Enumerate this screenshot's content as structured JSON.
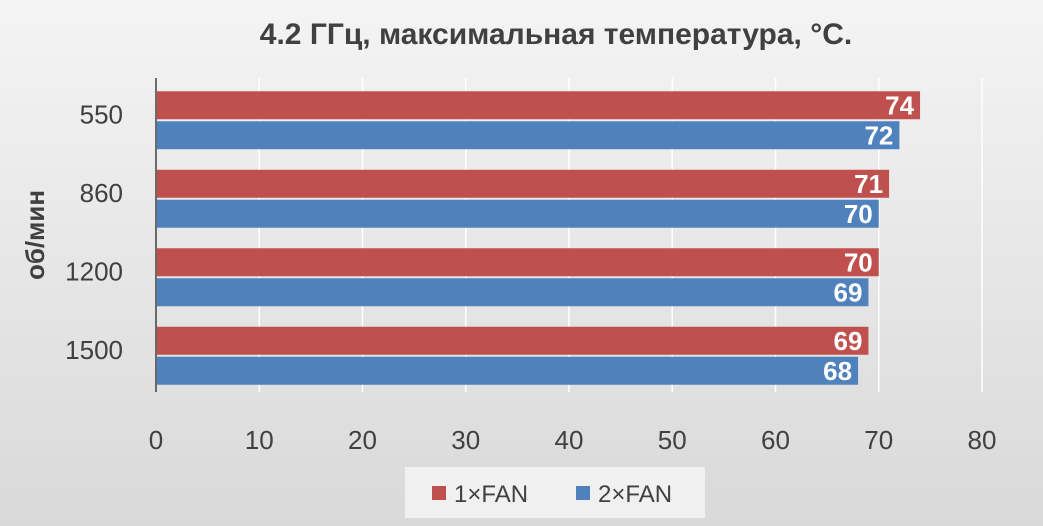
{
  "chart_data": {
    "type": "bar",
    "orientation": "horizontal",
    "title": "4.2 ГГц, максимальная температура, °С.",
    "ylabel": "об/мин",
    "xlabel": "",
    "categories": [
      "550",
      "860",
      "1200",
      "1500"
    ],
    "series": [
      {
        "name": "1×FAN",
        "values": [
          74,
          71,
          70,
          69
        ],
        "color": "#c0504d"
      },
      {
        "name": "2×FAN",
        "values": [
          72,
          70,
          69,
          68
        ],
        "color": "#4f81bd"
      }
    ],
    "xlim": [
      0,
      80
    ],
    "xticks": [
      "0",
      "10",
      "20",
      "30",
      "40",
      "50",
      "60",
      "70",
      "80"
    ],
    "grid": "vertical",
    "data_labels": true,
    "legend": "bottom"
  },
  "colors": {
    "background": "#e6e6e6",
    "text": "#404040",
    "grid": "#ffffff",
    "axis": "#404040",
    "legend_background": "#ffffff"
  }
}
